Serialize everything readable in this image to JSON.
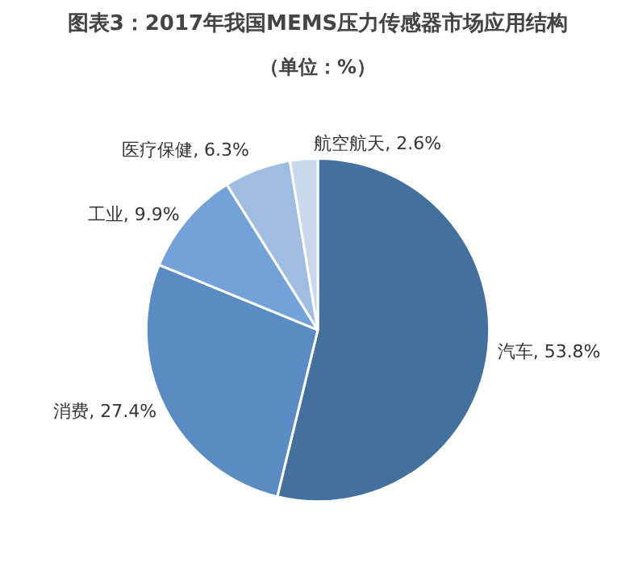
{
  "chart_data": {
    "type": "pie",
    "title": "图表3：2017年我国MEMS压力传感器市场应用结构",
    "subtitle": "（单位：%）",
    "categories": [
      "汽车",
      "消费",
      "工业",
      "医疗保健",
      "航空航天"
    ],
    "values": [
      53.8,
      27.4,
      9.9,
      6.3,
      2.6
    ],
    "value_labels": [
      "53.8%",
      "27.4%",
      "9.9%",
      "6.3%",
      "2.6%"
    ],
    "colors": [
      "#44709d",
      "#5b8bc3",
      "#72a2d8",
      "#9fbde0",
      "#c9d8ec"
    ]
  }
}
